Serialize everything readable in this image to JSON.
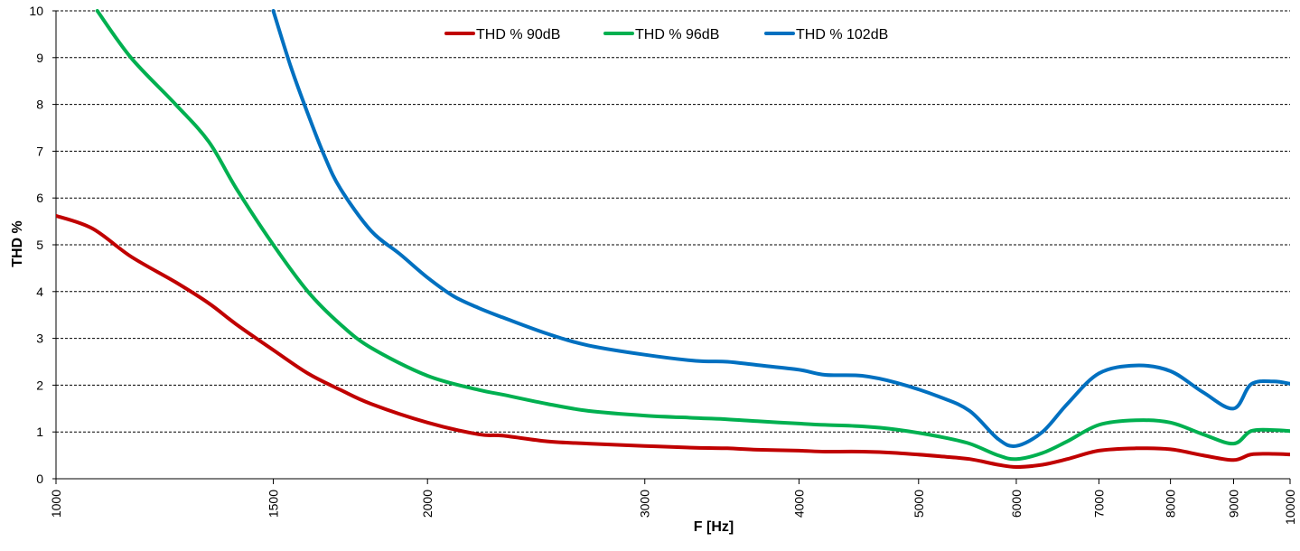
{
  "chart_data": {
    "type": "line",
    "xlabel": "F [Hz]",
    "ylabel": "THD %",
    "xscale": "log",
    "xlim": [
      1000,
      10000
    ],
    "ylim": [
      0,
      10
    ],
    "grid": "horizontal dashed",
    "legend_position": "top-center",
    "x_ticks": [
      "1000",
      "1500",
      "2000",
      "3000",
      "4000",
      "5000",
      "6000",
      "7000",
      "8000",
      "9000",
      "10000"
    ],
    "y_ticks": [
      "0",
      "1",
      "2",
      "3",
      "4",
      "5",
      "6",
      "7",
      "8",
      "9",
      "10"
    ],
    "series": [
      {
        "name": "THD % 90dB",
        "color": "#c00000",
        "x": [
          1000,
          1070,
          1150,
          1250,
          1330,
          1400,
          1500,
          1600,
          1700,
          1800,
          2000,
          2200,
          2300,
          2500,
          2700,
          3000,
          3300,
          3500,
          3700,
          4000,
          4200,
          4500,
          4800,
          5200,
          5500,
          5800,
          6000,
          6300,
          6600,
          7000,
          7500,
          8000,
          8500,
          9000,
          9300,
          9700,
          10000
        ],
        "y": [
          5.62,
          5.35,
          4.75,
          4.2,
          3.75,
          3.3,
          2.75,
          2.25,
          1.9,
          1.6,
          1.2,
          0.95,
          0.92,
          0.8,
          0.75,
          0.7,
          0.66,
          0.65,
          0.62,
          0.6,
          0.58,
          0.58,
          0.55,
          0.48,
          0.42,
          0.3,
          0.25,
          0.3,
          0.42,
          0.6,
          0.65,
          0.63,
          0.5,
          0.4,
          0.52,
          0.53,
          0.52
        ]
      },
      {
        "name": "THD % 96dB",
        "color": "#00b050",
        "x": [
          1080,
          1150,
          1250,
          1330,
          1400,
          1500,
          1600,
          1700,
          1800,
          2000,
          2200,
          2300,
          2500,
          2700,
          3000,
          3300,
          3500,
          3700,
          4000,
          4200,
          4500,
          4800,
          5200,
          5500,
          5800,
          6000,
          6300,
          6600,
          7000,
          7500,
          8000,
          8500,
          9000,
          9300,
          9700,
          10000
        ],
        "y": [
          10.0,
          9.0,
          8.0,
          7.2,
          6.2,
          5.0,
          4.0,
          3.3,
          2.8,
          2.2,
          1.9,
          1.8,
          1.6,
          1.45,
          1.35,
          1.3,
          1.27,
          1.23,
          1.18,
          1.15,
          1.12,
          1.05,
          0.9,
          0.75,
          0.5,
          0.42,
          0.55,
          0.8,
          1.15,
          1.25,
          1.2,
          0.95,
          0.75,
          1.02,
          1.04,
          1.02
        ]
      },
      {
        "name": "THD % 102dB",
        "color": "#0070c0",
        "x": [
          1500,
          1550,
          1600,
          1650,
          1700,
          1800,
          1900,
          2000,
          2100,
          2200,
          2300,
          2500,
          2700,
          3000,
          3300,
          3500,
          3700,
          4000,
          4200,
          4500,
          4800,
          5200,
          5500,
          5800,
          6000,
          6300,
          6600,
          7000,
          7500,
          8000,
          8500,
          9000,
          9300,
          9700,
          10000
        ],
        "y": [
          10.0,
          8.8,
          7.8,
          6.9,
          6.2,
          5.3,
          4.8,
          4.3,
          3.9,
          3.65,
          3.45,
          3.1,
          2.85,
          2.65,
          2.52,
          2.5,
          2.43,
          2.33,
          2.22,
          2.2,
          2.05,
          1.75,
          1.45,
          0.85,
          0.7,
          1.0,
          1.6,
          2.25,
          2.42,
          2.3,
          1.85,
          1.5,
          2.02,
          2.08,
          2.03
        ]
      }
    ]
  }
}
